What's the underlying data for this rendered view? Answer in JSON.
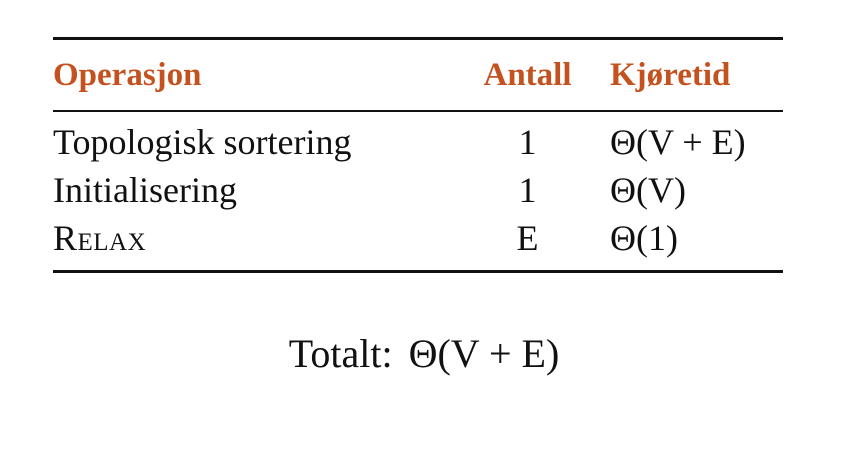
{
  "table": {
    "headers": {
      "operation": "Operasjon",
      "count": "Antall",
      "runtime": "Kjøretid"
    },
    "rows": [
      {
        "operation": "Topologisk sortering",
        "count": "1",
        "runtime": "Θ(V + E)"
      },
      {
        "operation": "Initialisering",
        "count": "1",
        "runtime": "Θ(V)"
      },
      {
        "operation": "Relax",
        "count": "E",
        "runtime": "Θ(1)"
      }
    ]
  },
  "total": {
    "label": "Totalt:",
    "value": "Θ(V + E)"
  },
  "colors": {
    "header_text": "#c4521f",
    "body_text": "#111111",
    "rules": "#111111"
  }
}
